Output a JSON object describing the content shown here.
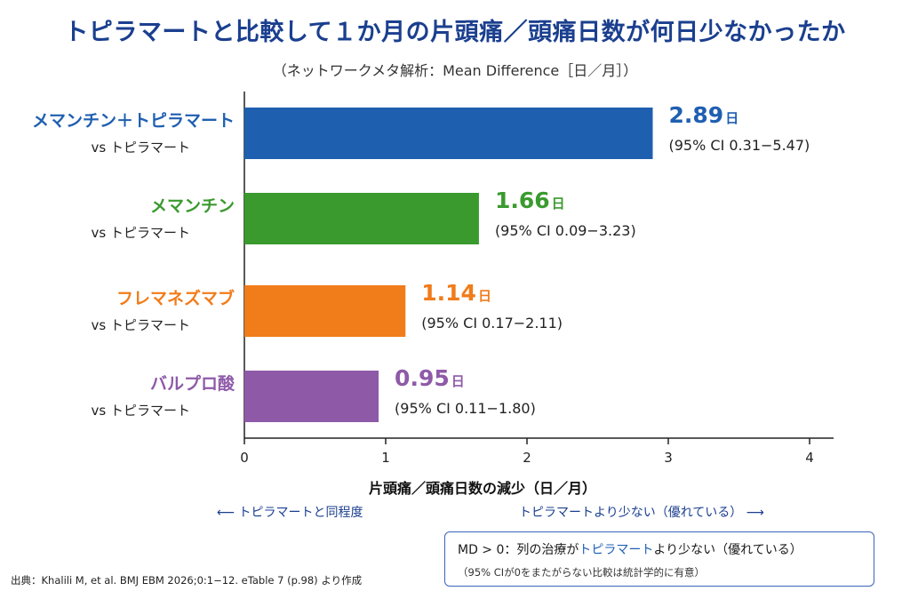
{
  "title": "トピラマートと比較して１か月の片頭痛／頭痛日数が何日少なかったか",
  "subtitle": "（ネットワークメタ解析：Mean Difference［日／月］）",
  "chart_data": {
    "type": "bar",
    "orientation": "horizontal",
    "categories": [
      "メマンチン＋トピラマート",
      "メマンチン",
      "フレマネズマブ",
      "バルプロ酸"
    ],
    "comparator_label": "vs トピラマート",
    "values": [
      2.89,
      1.66,
      1.14,
      0.95
    ],
    "value_unit": "日",
    "ci_labels": [
      "(95% CI 0.31−5.47)",
      "(95% CI 0.09−3.23)",
      "(95% CI 0.17−2.11)",
      "(95% CI 0.11−1.80)"
    ],
    "colors": [
      "#1f5fb0",
      "#3a9a2e",
      "#f07c1a",
      "#8e5aa8"
    ],
    "xlabel": "片頭痛／頭痛日数の減少（日／月）",
    "xlim": [
      0,
      4.15
    ],
    "xticks": [
      "0",
      "1",
      "2",
      "3",
      "4"
    ],
    "grid": false,
    "legend": "none"
  },
  "annotations": {
    "left_arrow": "⟵ トピラマートと同程度",
    "right_arrow": "トピラマートより少ない（優れている） ⟶"
  },
  "note": {
    "main_prefix": "MD > 0：列の治療が",
    "main_highlight": "トピラマート",
    "main_suffix": "より少ない（優れている）",
    "sub": "（95% CIが0をまたがらない比較は統計学的に有意）"
  },
  "source": "出典：Khalili M, et al. BMJ EBM 2026;0:1−12. eTable 7 (p.98) より作成"
}
